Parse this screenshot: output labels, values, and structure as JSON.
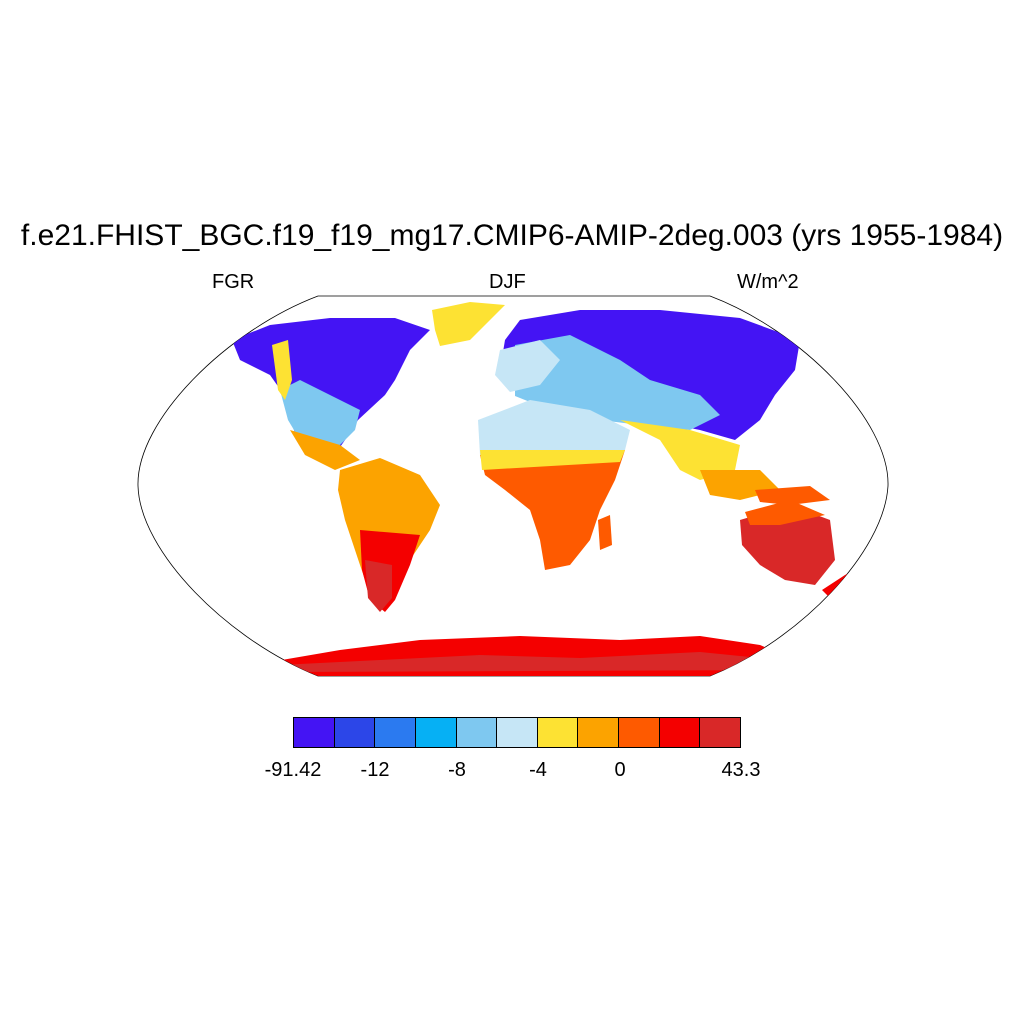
{
  "title": "f.e21.FHIST_BGC.f19_f19_mg17.CMIP6-AMIP-2deg.003 (yrs 1955-1984)",
  "left_label": "FGR",
  "center_label": "DJF",
  "right_label": "W/m^2",
  "colorbar": {
    "colors": [
      "#4414f4",
      "#2c46e8",
      "#2b7af0",
      "#06b0f4",
      "#7ec8f0",
      "#c6e6f6",
      "#fde233",
      "#fca300",
      "#fe5a00",
      "#f40000",
      "#d92828"
    ],
    "tick_labels": [
      "-91.42",
      "-12",
      "-8",
      "-4",
      "0",
      "43.3"
    ]
  }
}
